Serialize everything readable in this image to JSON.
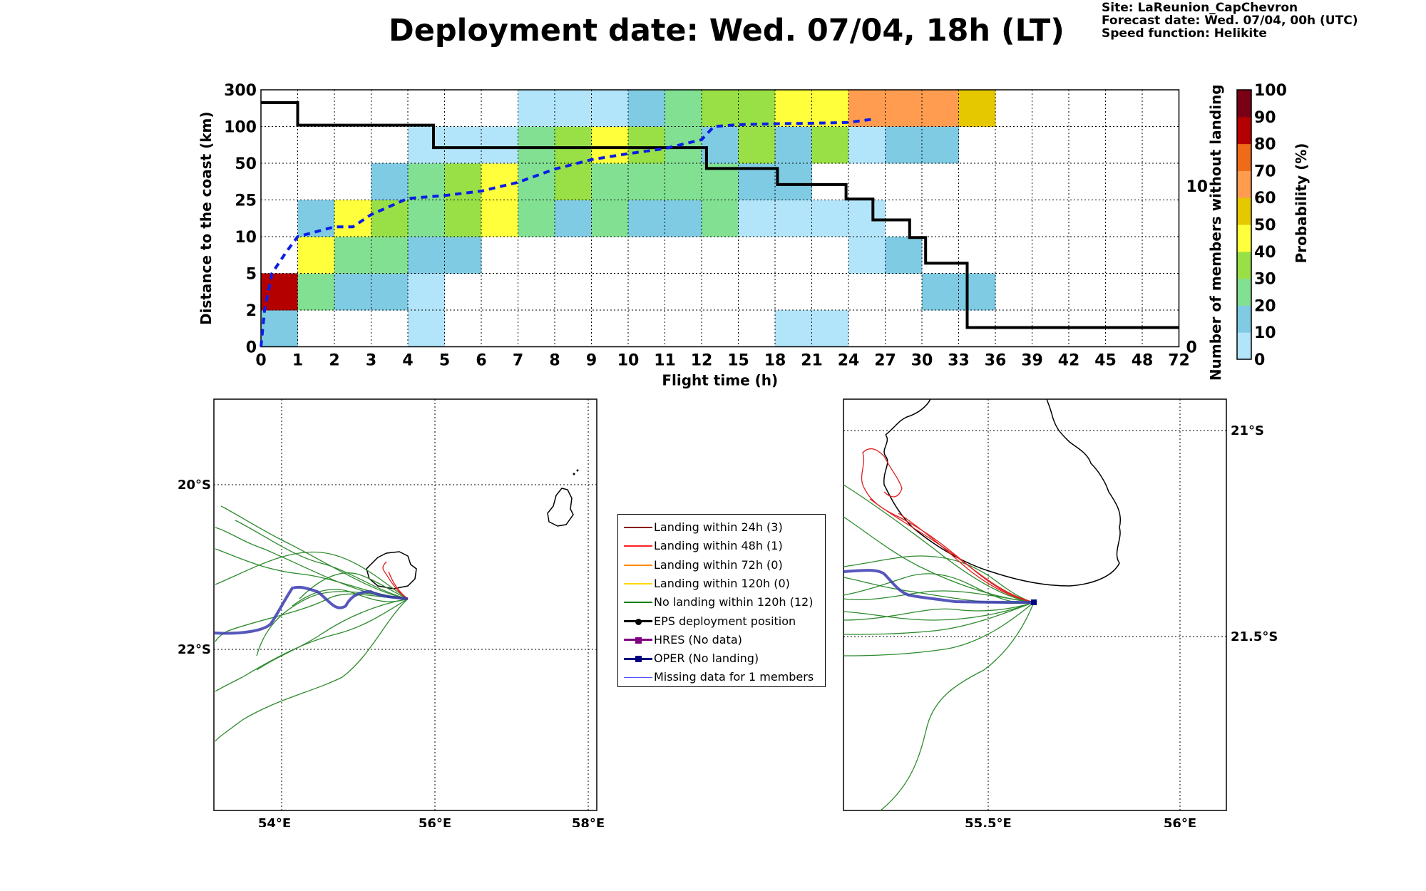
{
  "title": "Deployment date: Wed. 07/04, 18h (LT)",
  "info": {
    "site": "Site: LaReunion_CapChevron",
    "forecast": "Forecast date: Wed. 07/04, 00h (UTC)",
    "speed": "Speed function: Helikite"
  },
  "chart_data": [
    {
      "type": "heatmap",
      "xlabel": "Flight time (h)",
      "ylabel": "Distance to the coast (km)",
      "y2label": "Number of members without landing",
      "colorbar_label": "Probability (%)",
      "x_tick_labels": [
        "0",
        "1",
        "2",
        "3",
        "4",
        "5",
        "6",
        "7",
        "8",
        "9",
        "10",
        "11",
        "12",
        "15",
        "18",
        "21",
        "24",
        "27",
        "30",
        "33",
        "36",
        "39",
        "42",
        "45",
        "48",
        "72"
      ],
      "y_tick_labels": [
        "0",
        "2",
        "5",
        "10",
        "25",
        "50",
        "100",
        "300"
      ],
      "y2_ticks": [
        0,
        10
      ],
      "y2_range": [
        0,
        16
      ],
      "colorbar_ticks": [
        "0",
        "10",
        "20",
        "30",
        "40",
        "50",
        "60",
        "70",
        "80",
        "90",
        "100"
      ],
      "colorbar_colors": [
        "#b3e5fa",
        "#7fcbe3",
        "#82e093",
        "#99e046",
        "#ffff3c",
        "#e6c800",
        "#ff9c50",
        "#ee6b18",
        "#b50000",
        "#7a0015"
      ],
      "grid": true,
      "cells": [
        {
          "x": 0,
          "y": 0,
          "p": 10
        },
        {
          "x": 0,
          "y": 1,
          "p": 80
        },
        {
          "x": 1,
          "y": 1,
          "p": 20
        },
        {
          "x": 1,
          "y": 2,
          "p": 40
        },
        {
          "x": 1,
          "y": 3,
          "p": 10
        },
        {
          "x": 2,
          "y": 1,
          "p": 10
        },
        {
          "x": 2,
          "y": 2,
          "p": 20
        },
        {
          "x": 2,
          "y": 3,
          "p": 40
        },
        {
          "x": 3,
          "y": 1,
          "p": 10
        },
        {
          "x": 3,
          "y": 2,
          "p": 20
        },
        {
          "x": 3,
          "y": 3,
          "p": 30
        },
        {
          "x": 3,
          "y": 4,
          "p": 10
        },
        {
          "x": 4,
          "y": 0,
          "p": 0
        },
        {
          "x": 4,
          "y": 1,
          "p": 0
        },
        {
          "x": 4,
          "y": 2,
          "p": 10
        },
        {
          "x": 4,
          "y": 3,
          "p": 20
        },
        {
          "x": 4,
          "y": 4,
          "p": 20
        },
        {
          "x": 4,
          "y": 5,
          "p": 0
        },
        {
          "x": 5,
          "y": 2,
          "p": 10
        },
        {
          "x": 5,
          "y": 3,
          "p": 30
        },
        {
          "x": 5,
          "y": 4,
          "p": 30
        },
        {
          "x": 5,
          "y": 5,
          "p": 0
        },
        {
          "x": 6,
          "y": 3,
          "p": 40
        },
        {
          "x": 6,
          "y": 4,
          "p": 40
        },
        {
          "x": 6,
          "y": 5,
          "p": 0
        },
        {
          "x": 7,
          "y": 3,
          "p": 20
        },
        {
          "x": 7,
          "y": 4,
          "p": 20
        },
        {
          "x": 7,
          "y": 5,
          "p": 20
        },
        {
          "x": 7,
          "y": 6,
          "p": 0
        },
        {
          "x": 8,
          "y": 3,
          "p": 10
        },
        {
          "x": 8,
          "y": 4,
          "p": 30
        },
        {
          "x": 8,
          "y": 5,
          "p": 30
        },
        {
          "x": 8,
          "y": 6,
          "p": 0
        },
        {
          "x": 9,
          "y": 3,
          "p": 20
        },
        {
          "x": 9,
          "y": 4,
          "p": 20
        },
        {
          "x": 9,
          "y": 5,
          "p": 40
        },
        {
          "x": 9,
          "y": 6,
          "p": 0
        },
        {
          "x": 10,
          "y": 3,
          "p": 10
        },
        {
          "x": 10,
          "y": 4,
          "p": 20
        },
        {
          "x": 10,
          "y": 5,
          "p": 30
        },
        {
          "x": 10,
          "y": 6,
          "p": 10
        },
        {
          "x": 11,
          "y": 3,
          "p": 10
        },
        {
          "x": 11,
          "y": 4,
          "p": 20
        },
        {
          "x": 11,
          "y": 5,
          "p": 20
        },
        {
          "x": 11,
          "y": 6,
          "p": 20
        },
        {
          "x": 12,
          "y": 3,
          "p": 20
        },
        {
          "x": 12,
          "y": 4,
          "p": 20
        },
        {
          "x": 12,
          "y": 5,
          "p": 10
        },
        {
          "x": 12,
          "y": 6,
          "p": 30
        },
        {
          "x": 13,
          "y": 3,
          "p": 0
        },
        {
          "x": 13,
          "y": 4,
          "p": 10
        },
        {
          "x": 13,
          "y": 5,
          "p": 30
        },
        {
          "x": 13,
          "y": 6,
          "p": 30
        },
        {
          "x": 14,
          "y": 0,
          "p": 0
        },
        {
          "x": 14,
          "y": 3,
          "p": 0
        },
        {
          "x": 14,
          "y": 4,
          "p": 10
        },
        {
          "x": 14,
          "y": 5,
          "p": 10
        },
        {
          "x": 14,
          "y": 6,
          "p": 40
        },
        {
          "x": 15,
          "y": 0,
          "p": 0
        },
        {
          "x": 15,
          "y": 3,
          "p": 0
        },
        {
          "x": 15,
          "y": 5,
          "p": 30
        },
        {
          "x": 15,
          "y": 6,
          "p": 40
        },
        {
          "x": 16,
          "y": 2,
          "p": 0
        },
        {
          "x": 16,
          "y": 3,
          "p": 0
        },
        {
          "x": 16,
          "y": 5,
          "p": 0
        },
        {
          "x": 16,
          "y": 6,
          "p": 60
        },
        {
          "x": 17,
          "y": 2,
          "p": 10
        },
        {
          "x": 17,
          "y": 5,
          "p": 10
        },
        {
          "x": 17,
          "y": 6,
          "p": 60
        },
        {
          "x": 18,
          "y": 1,
          "p": 10
        },
        {
          "x": 18,
          "y": 5,
          "p": 10
        },
        {
          "x": 18,
          "y": 6,
          "p": 60
        },
        {
          "x": 19,
          "y": 1,
          "p": 10
        },
        {
          "x": 19,
          "y": 6,
          "p": 50
        }
      ],
      "members_without_landing": {
        "x": [
          0,
          1,
          1,
          4.7,
          4.7,
          12.4,
          12.4,
          18.2,
          18.2,
          23.8,
          23.8,
          26,
          26,
          29,
          29,
          30.3,
          30.3,
          33.7,
          33.7,
          72
        ],
        "y": [
          15.2,
          15.2,
          13.8,
          13.8,
          12.4,
          12.4,
          11.1,
          11.1,
          10.1,
          10.1,
          9.2,
          9.2,
          7.9,
          7.9,
          6.8,
          6.8,
          5.2,
          5.2,
          1.2,
          1.2
        ]
      },
      "mean_distance_km": {
        "x": [
          0,
          0.1,
          0.3,
          0.7,
          1,
          1.5,
          2,
          2.5,
          3,
          4,
          5,
          6,
          7,
          8,
          9,
          10,
          11,
          12,
          13,
          15,
          18,
          21,
          24,
          26
        ],
        "y": [
          0,
          2,
          5,
          8,
          10,
          12,
          14,
          14,
          19,
          26,
          28,
          31,
          37,
          46,
          55,
          63,
          70,
          82,
          100,
          110,
          115,
          118,
          122,
          140
        ]
      }
    },
    {
      "type": "map",
      "x_tick_labels": [
        "54°E",
        "56°E",
        "58°E"
      ],
      "y_tick_labels": [
        "20°S",
        "22°S"
      ]
    },
    {
      "type": "map",
      "x_tick_labels": [
        "55.5°E",
        "56°E"
      ],
      "y_tick_labels": [
        "21°S",
        "21.5°S"
      ]
    }
  ],
  "legend": [
    {
      "label": "Landing within 24h (3)",
      "color": "#8b0000",
      "kind": "line"
    },
    {
      "label": "Landing within 48h (1)",
      "color": "#ff2020",
      "kind": "line"
    },
    {
      "label": "Landing within 72h (0)",
      "color": "#ff8c00",
      "kind": "line"
    },
    {
      "label": "Landing within 120h (0)",
      "color": "#ffd700",
      "kind": "line"
    },
    {
      "label": "No landing within 120h (12)",
      "color": "#008000",
      "kind": "line"
    },
    {
      "label": "EPS deployment position",
      "color": "#000000",
      "kind": "circle"
    },
    {
      "label": "HRES (No data)",
      "color": "#800080",
      "kind": "square"
    },
    {
      "label": "OPER (No landing)",
      "color": "#000080",
      "kind": "square"
    },
    {
      "label": "Missing data for 1 members",
      "color": "#5050ff",
      "kind": "thin"
    }
  ]
}
